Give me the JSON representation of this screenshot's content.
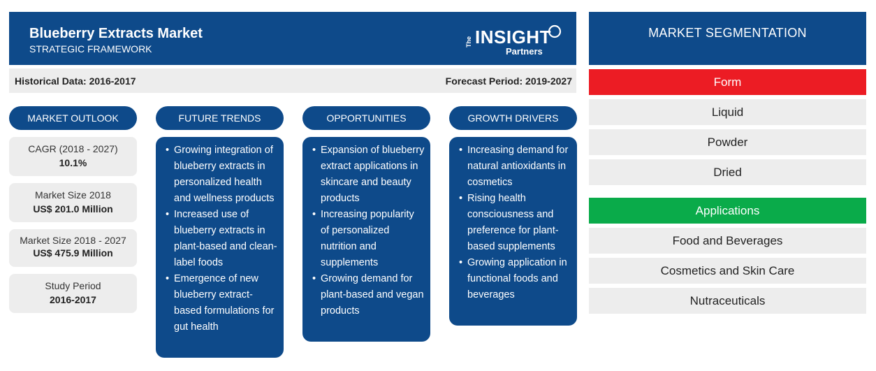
{
  "header": {
    "title": "Blueberry Extracts Market",
    "subtitle": "STRATEGIC FRAMEWORK",
    "logo_the": "The",
    "logo_insight": "INSIGHT",
    "logo_partners": "Partners"
  },
  "period": {
    "historical": "Historical Data: 2016-2017",
    "forecast": "Forecast Period: 2019-2027"
  },
  "columns": {
    "outlook": "MARKET OUTLOOK",
    "trends": "FUTURE TRENDS",
    "opportunities": "OPPORTUNITIES",
    "drivers": "GROWTH DRIVERS"
  },
  "outlook": [
    {
      "label": "CAGR (2018 - 2027)",
      "value": "10.1%"
    },
    {
      "label": "Market Size 2018",
      "value": "US$ 201.0 Million"
    },
    {
      "label": "Market Size 2018 - 2027",
      "value": "US$ 475.9 Million"
    },
    {
      "label": "Study Period",
      "value": "2016-2017"
    }
  ],
  "trends": [
    "Growing integration of blueberry extracts in personalized health and wellness products",
    "Increased use of blueberry extracts in plant-based and clean-label foods",
    "Emergence of new blueberry extract-based formulations for gut health"
  ],
  "opportunities": [
    "Expansion of blueberry extract applications in skincare and beauty products",
    "Increasing popularity of personalized nutrition and supplements",
    "Growing demand for plant-based and vegan products"
  ],
  "drivers": [
    "Increasing demand for natural antioxidants in cosmetics",
    "Rising health consciousness and preference for plant-based supplements",
    "Growing application in functional foods and beverages"
  ],
  "segmentation": {
    "title": "MARKET SEGMENTATION",
    "form": {
      "label": "Form",
      "color": "#ec1c24",
      "items": [
        "Liquid",
        "Powder",
        "Dried"
      ]
    },
    "applications": {
      "label": "Applications",
      "color": "#0aab4a",
      "items": [
        "Food and Beverages",
        "Cosmetics and Skin Care",
        "Nutraceuticals"
      ]
    }
  }
}
